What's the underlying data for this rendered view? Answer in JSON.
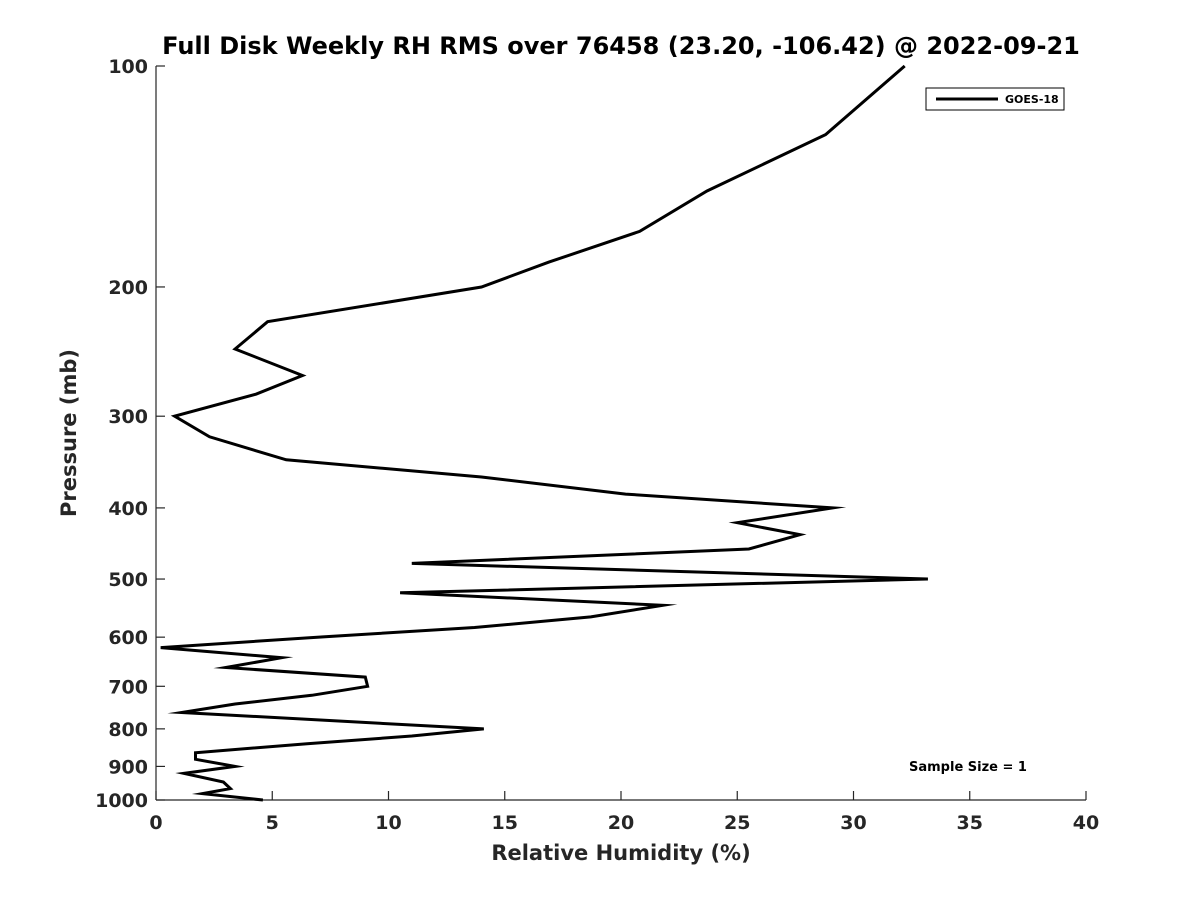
{
  "chart_data": {
    "type": "line",
    "title": "Full Disk Weekly RH RMS over 76458 (23.20, -106.42) @ 2022-09-21",
    "xlabel": "Relative Humidity (%)",
    "ylabel": "Pressure (mb)",
    "xlim": [
      0,
      40
    ],
    "ylim": [
      1000,
      100
    ],
    "yscale": "log",
    "xticks": [
      0,
      5,
      10,
      15,
      20,
      25,
      30,
      35,
      40
    ],
    "yticks": [
      100,
      200,
      300,
      400,
      500,
      600,
      700,
      800,
      900,
      1000
    ],
    "grid": false,
    "legend_position": "top-right",
    "annotation": "Sample Size = 1",
    "series": [
      {
        "name": "GOES-18",
        "color": "#000000",
        "points": [
          [
            32.2,
            100
          ],
          [
            28.8,
            124
          ],
          [
            23.7,
            148
          ],
          [
            20.8,
            168
          ],
          [
            16.9,
            185
          ],
          [
            14.0,
            200
          ],
          [
            4.8,
            223
          ],
          [
            3.4,
            243
          ],
          [
            6.3,
            264
          ],
          [
            4.3,
            280
          ],
          [
            0.8,
            300
          ],
          [
            2.3,
            320
          ],
          [
            5.6,
            344
          ],
          [
            14.0,
            363
          ],
          [
            20.2,
            383
          ],
          [
            29.1,
            400
          ],
          [
            25.0,
            419
          ],
          [
            27.7,
            435
          ],
          [
            25.5,
            455
          ],
          [
            11.0,
            476
          ],
          [
            33.2,
            500
          ],
          [
            10.5,
            522
          ],
          [
            21.8,
            543
          ],
          [
            18.7,
            563
          ],
          [
            13.7,
            582
          ],
          [
            6.6,
            601
          ],
          [
            0.2,
            620
          ],
          [
            5.4,
            640
          ],
          [
            3.0,
            660
          ],
          [
            9.0,
            680
          ],
          [
            9.1,
            700
          ],
          [
            6.7,
            720
          ],
          [
            3.4,
            740
          ],
          [
            1.1,
            760
          ],
          [
            14.1,
            800
          ],
          [
            11.0,
            818
          ],
          [
            6.5,
            838
          ],
          [
            1.7,
            862
          ],
          [
            1.7,
            880
          ],
          [
            3.4,
            900
          ],
          [
            1.2,
            920
          ],
          [
            2.9,
            945
          ],
          [
            3.2,
            965
          ],
          [
            2.0,
            980
          ],
          [
            4.6,
            1000
          ]
        ]
      }
    ]
  }
}
